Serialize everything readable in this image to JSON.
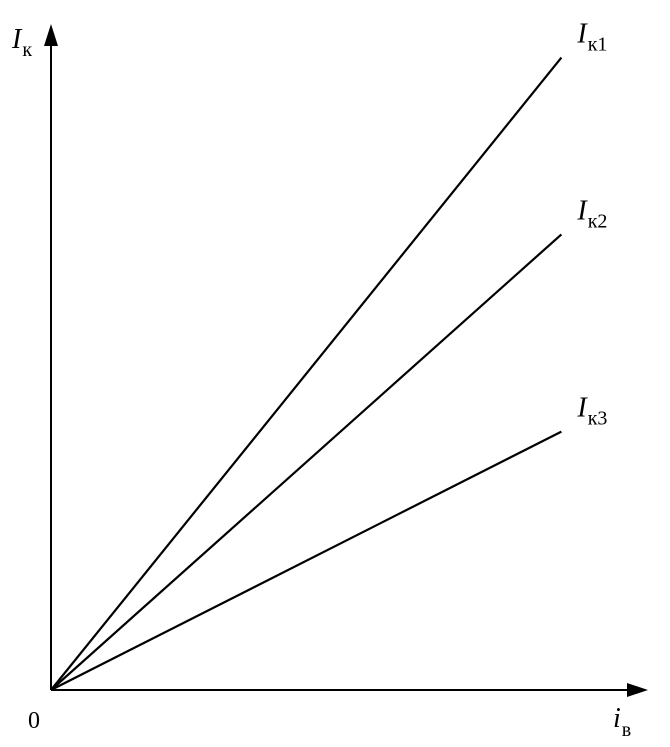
{
  "chart_data": {
    "type": "line",
    "xlabel": {
      "symbol": "i",
      "subscript": "в"
    },
    "ylabel": {
      "symbol": "I",
      "subscript": "к"
    },
    "origin_label": "0",
    "grid": false,
    "ticks_shown": false,
    "xlim": [
      0,
      1
    ],
    "ylim": [
      0,
      1
    ],
    "series": [
      {
        "symbol": "I",
        "subscript": "к1",
        "x": [
          0,
          0.88
        ],
        "y": [
          0,
          0.93
        ]
      },
      {
        "symbol": "I",
        "subscript": "к2",
        "x": [
          0,
          0.88
        ],
        "y": [
          0,
          0.67
        ]
      },
      {
        "symbol": "I",
        "subscript": "к3",
        "x": [
          0,
          0.88
        ],
        "y": [
          0,
          0.38
        ]
      }
    ]
  }
}
